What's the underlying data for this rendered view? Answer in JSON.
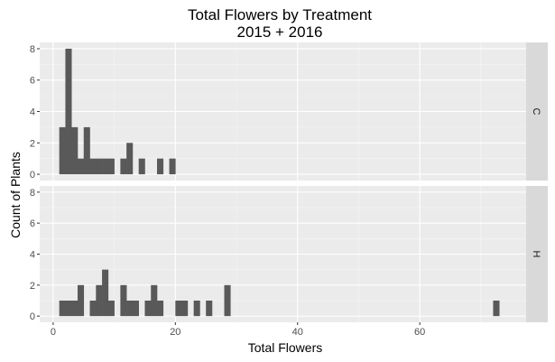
{
  "chart_data": {
    "type": "bar",
    "title": "Total Flowers by Treatment",
    "subtitle": "2015 + 2016",
    "xlabel": "Total Flowers",
    "ylabel": "Count of Plants",
    "xlim": [
      -2.2,
      77.4
    ],
    "ylim": [
      -0.4,
      8.4
    ],
    "x_ticks": [
      0,
      20,
      40,
      60
    ],
    "y_ticks": [
      0,
      2,
      4,
      6,
      8
    ],
    "bin_width": 1,
    "grid": true,
    "legend": "none",
    "colors": {
      "bar": "#595959",
      "panel": "#ebebeb",
      "grid_major": "#ffffff",
      "grid_minor": "#f5f5f5",
      "strip": "#d9d9d9",
      "tick_text": "#4d4d4d"
    },
    "facets": [
      {
        "label": "C",
        "bins": [
          {
            "x": 1,
            "count": 3
          },
          {
            "x": 2,
            "count": 8
          },
          {
            "x": 3,
            "count": 3
          },
          {
            "x": 4,
            "count": 1
          },
          {
            "x": 5,
            "count": 3
          },
          {
            "x": 6,
            "count": 1
          },
          {
            "x": 7,
            "count": 1
          },
          {
            "x": 8,
            "count": 1
          },
          {
            "x": 9,
            "count": 1
          },
          {
            "x": 11,
            "count": 1
          },
          {
            "x": 12,
            "count": 2
          },
          {
            "x": 14,
            "count": 1
          },
          {
            "x": 17,
            "count": 1
          },
          {
            "x": 19,
            "count": 1
          }
        ]
      },
      {
        "label": "H",
        "bins": [
          {
            "x": 1,
            "count": 1
          },
          {
            "x": 2,
            "count": 1
          },
          {
            "x": 3,
            "count": 1
          },
          {
            "x": 4,
            "count": 2
          },
          {
            "x": 6,
            "count": 1
          },
          {
            "x": 7,
            "count": 2
          },
          {
            "x": 8,
            "count": 3
          },
          {
            "x": 9,
            "count": 1
          },
          {
            "x": 11,
            "count": 2
          },
          {
            "x": 12,
            "count": 1
          },
          {
            "x": 13,
            "count": 1
          },
          {
            "x": 15,
            "count": 1
          },
          {
            "x": 16,
            "count": 2
          },
          {
            "x": 17,
            "count": 1
          },
          {
            "x": 20,
            "count": 1
          },
          {
            "x": 21,
            "count": 1
          },
          {
            "x": 23,
            "count": 1
          },
          {
            "x": 25,
            "count": 1
          },
          {
            "x": 28,
            "count": 2
          },
          {
            "x": 72,
            "count": 1
          }
        ]
      }
    ]
  }
}
